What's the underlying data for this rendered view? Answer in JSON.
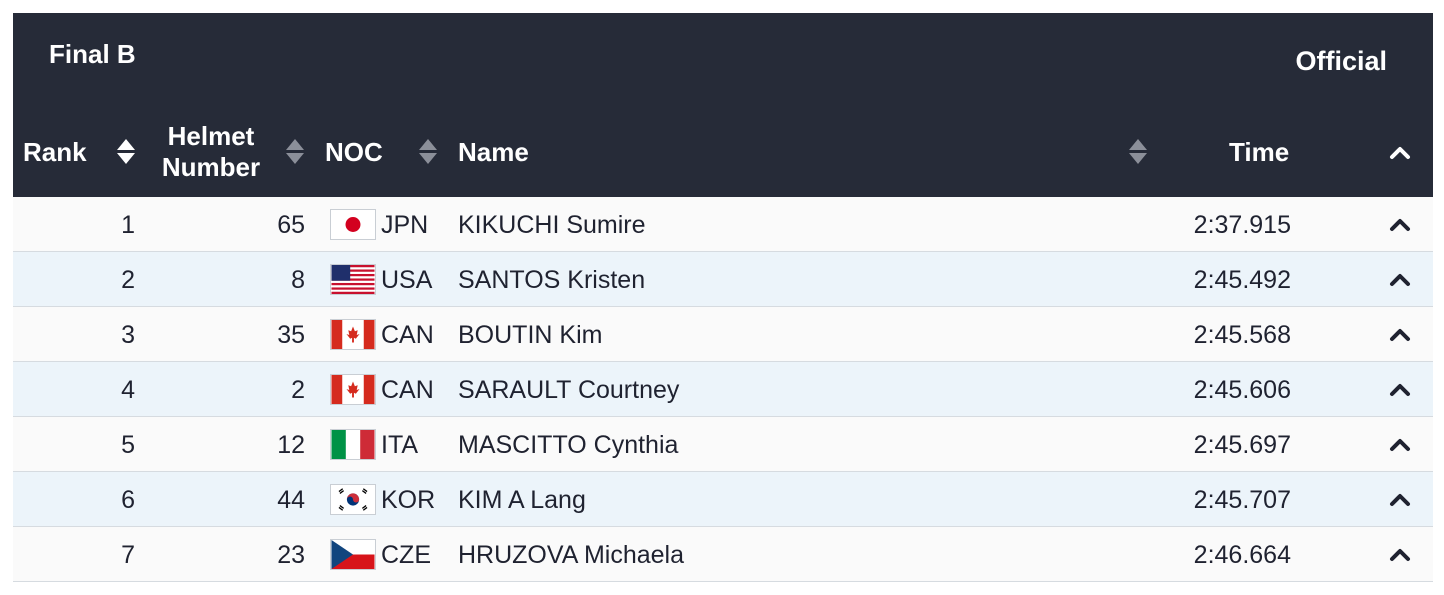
{
  "header": {
    "title": "Final B",
    "status": "Official",
    "columns": {
      "rank": "Rank",
      "helmet_line1": "Helmet",
      "helmet_line2": "Number",
      "noc": "NOC",
      "name": "Name",
      "time": "Time"
    }
  },
  "rows": [
    {
      "rank": "1",
      "helmet": "65",
      "noc": "JPN",
      "flag": "japan-flag-icon",
      "name": "KIKUCHI Sumire",
      "time": "2:37.915"
    },
    {
      "rank": "2",
      "helmet": "8",
      "noc": "USA",
      "flag": "usa-flag-icon",
      "name": "SANTOS Kristen",
      "time": "2:45.492"
    },
    {
      "rank": "3",
      "helmet": "35",
      "noc": "CAN",
      "flag": "canada-flag-icon",
      "name": "BOUTIN Kim",
      "time": "2:45.568"
    },
    {
      "rank": "4",
      "helmet": "2",
      "noc": "CAN",
      "flag": "canada-flag-icon",
      "name": "SARAULT Courtney",
      "time": "2:45.606"
    },
    {
      "rank": "5",
      "helmet": "12",
      "noc": "ITA",
      "flag": "italy-flag-icon",
      "name": "MASCITTO Cynthia",
      "time": "2:45.697"
    },
    {
      "rank": "6",
      "helmet": "44",
      "noc": "KOR",
      "flag": "korea-flag-icon",
      "name": "KIM A Lang",
      "time": "2:45.707"
    },
    {
      "rank": "7",
      "helmet": "23",
      "noc": "CZE",
      "flag": "czech-flag-icon",
      "name": "HRUZOVA Michaela",
      "time": "2:46.664"
    }
  ],
  "colors": {
    "header_bg": "#262b38",
    "row_odd": "#fafafa",
    "row_even": "#ecf4fa"
  }
}
